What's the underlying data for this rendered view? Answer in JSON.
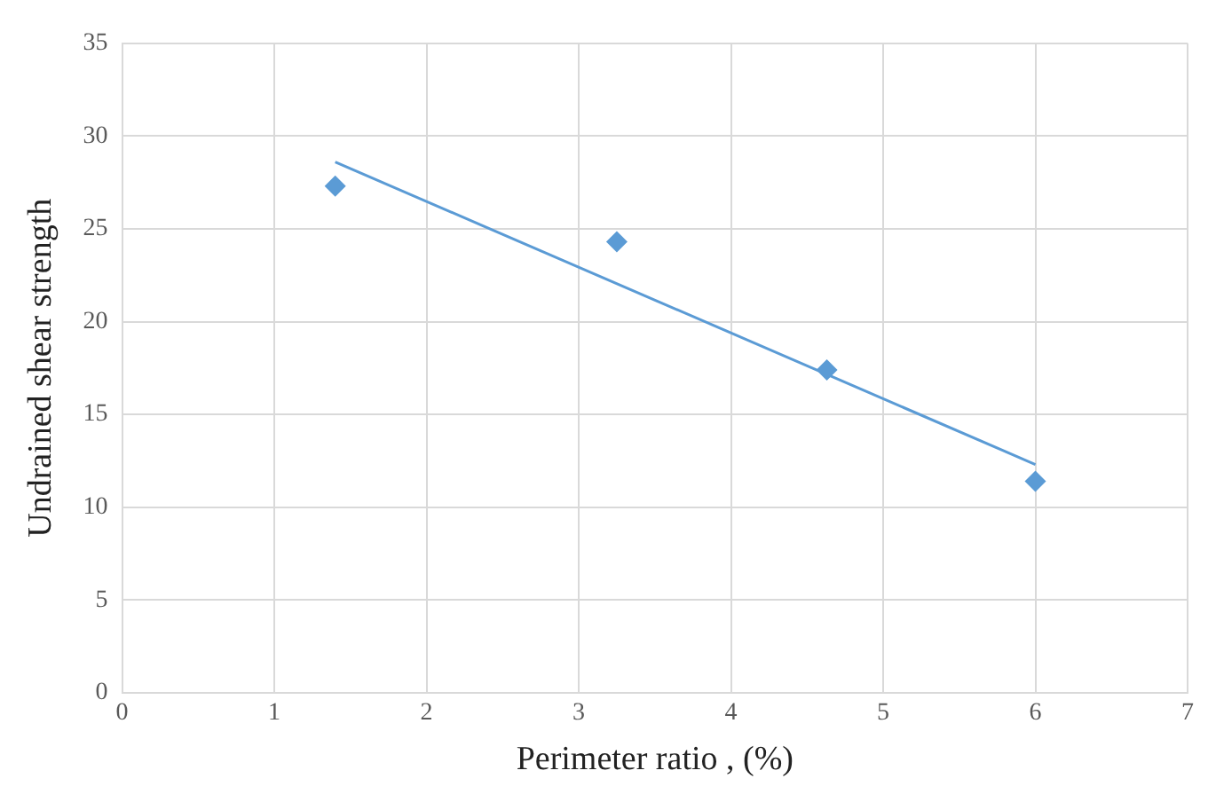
{
  "chart_data": {
    "type": "scatter",
    "xlabel": "Perimeter ratio , (%)",
    "ylabel": "Undrained shear strength",
    "xlim": [
      0,
      7
    ],
    "xticks": [
      0,
      1,
      2,
      3,
      4,
      5,
      6,
      7
    ],
    "ylim": [
      0,
      35
    ],
    "yticks": [
      0,
      5,
      10,
      15,
      20,
      25,
      30,
      35
    ],
    "grid": true,
    "marker": "diamond",
    "series": [
      {
        "color": "#5b9bd5",
        "x": [
          1.4,
          3.25,
          4.63,
          6.0
        ],
        "values": [
          27.3,
          24.3,
          17.4,
          11.4
        ]
      },
      {
        "type": "line",
        "color": "#5b9bd5",
        "x": [
          1.4,
          6.0
        ],
        "values": [
          28.6,
          12.3
        ],
        "marker": "none",
        "line_style": "solid"
      }
    ]
  }
}
